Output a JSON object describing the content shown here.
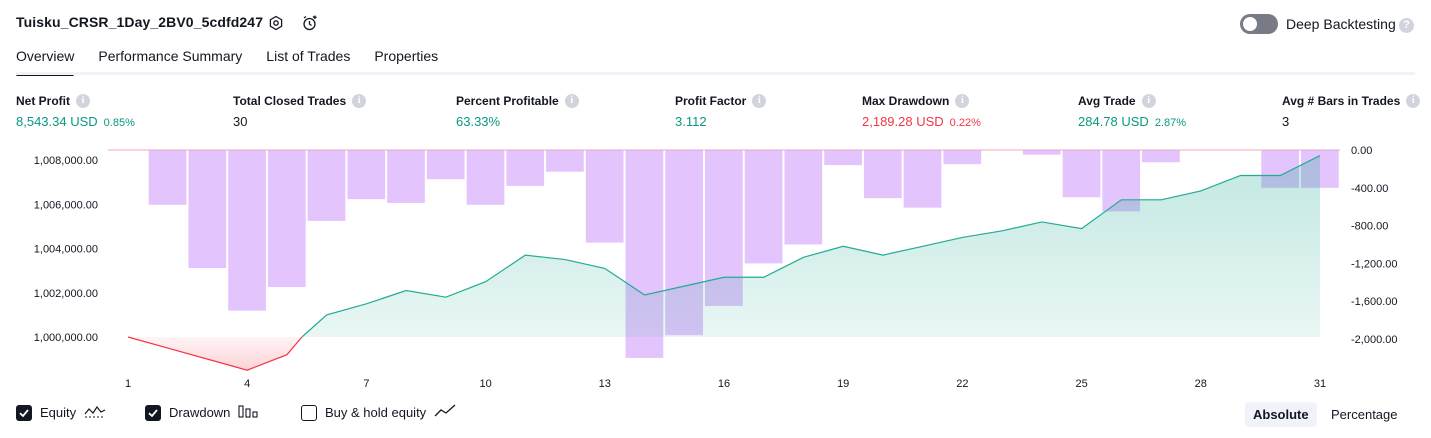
{
  "header": {
    "title": "Tuisku_CRSR_1Day_2BV0_5cdfd247",
    "deep_backtesting_label": "Deep Backtesting",
    "deep_backtesting_enabled": false,
    "help": "?"
  },
  "tabs": [
    {
      "label": "Overview",
      "active": true
    },
    {
      "label": "Performance Summary",
      "active": false
    },
    {
      "label": "List of Trades",
      "active": false
    },
    {
      "label": "Properties",
      "active": false
    }
  ],
  "metrics": [
    {
      "label": "Net Profit",
      "value": "8,543.34 USD",
      "percent": "0.85%",
      "color": "green"
    },
    {
      "label": "Total Closed Trades",
      "value": "30",
      "percent": "",
      "color": "dark"
    },
    {
      "label": "Percent Profitable",
      "value": "63.33%",
      "percent": "",
      "color": "green"
    },
    {
      "label": "Profit Factor",
      "value": "3.112",
      "percent": "",
      "color": "green"
    },
    {
      "label": "Max Drawdown",
      "value": "2,189.28 USD",
      "percent": "0.22%",
      "color": "red"
    },
    {
      "label": "Avg Trade",
      "value": "284.78 USD",
      "percent": "2.87%",
      "color": "green"
    },
    {
      "label": "Avg # Bars in Trades",
      "value": "3",
      "percent": "",
      "color": "dark"
    }
  ],
  "info_glyph": "i",
  "chart_data": {
    "type": "line",
    "left_axis_ticks": [
      "1,008,000.00",
      "1,006,000.00",
      "1,004,000.00",
      "1,002,000.00",
      "1,000,000.00"
    ],
    "right_axis_ticks": [
      "0.00",
      "-400.00",
      "-800.00",
      "-1,200.00",
      "-1,600.00",
      "-2,000.00"
    ],
    "x_ticks": [
      "1",
      "4",
      "7",
      "10",
      "13",
      "16",
      "19",
      "22",
      "25",
      "28",
      "31"
    ],
    "equity_ylim": [
      1000000,
      1008500
    ],
    "drawdown_ylim": [
      -2200,
      0
    ],
    "x": [
      1,
      2,
      3,
      4,
      5,
      6,
      7,
      8,
      9,
      10,
      11,
      12,
      13,
      14,
      15,
      16,
      17,
      18,
      19,
      20,
      21,
      22,
      23,
      24,
      25,
      26,
      27,
      28,
      29,
      30,
      31
    ],
    "series": [
      {
        "name": "Equity",
        "values": [
          1000000,
          999500,
          999000,
          998500,
          999200,
          1001000,
          1001500,
          1002100,
          1001800,
          1002500,
          1003700,
          1003500,
          1003100,
          1001900,
          1002300,
          1002700,
          1002700,
          1003600,
          1004100,
          1003700,
          1004100,
          1004500,
          1004800,
          1005200,
          1004900,
          1006200,
          1006200,
          1006600,
          1007300,
          1007300,
          1008200
        ]
      },
      {
        "name": "Drawdown",
        "values": [
          0,
          -580,
          -1250,
          -1700,
          -1450,
          -750,
          -520,
          -560,
          -310,
          -580,
          -380,
          -230,
          -980,
          -2200,
          -1960,
          -1650,
          -1200,
          -1000,
          -160,
          -510,
          -610,
          -150,
          0,
          -50,
          -500,
          -650,
          -130,
          0,
          0,
          -400,
          -400
        ]
      }
    ],
    "colors": {
      "equity_line": "#22ab94",
      "equity_fill": "#22ab94",
      "equity_negative": "#f23645",
      "drawdown_bar": "#d39ffa",
      "hold_line": "#131722"
    }
  },
  "legend": [
    {
      "label": "Equity",
      "checked": true,
      "icon": "equity-wave-icon"
    },
    {
      "label": "Drawdown",
      "checked": true,
      "icon": "drawdown-bars-icon"
    },
    {
      "label": "Buy & hold equity",
      "checked": false,
      "icon": "trend-line-icon"
    }
  ],
  "scale_toggle": {
    "absolute": "Absolute",
    "percentage": "Percentage",
    "selected": "Absolute"
  }
}
